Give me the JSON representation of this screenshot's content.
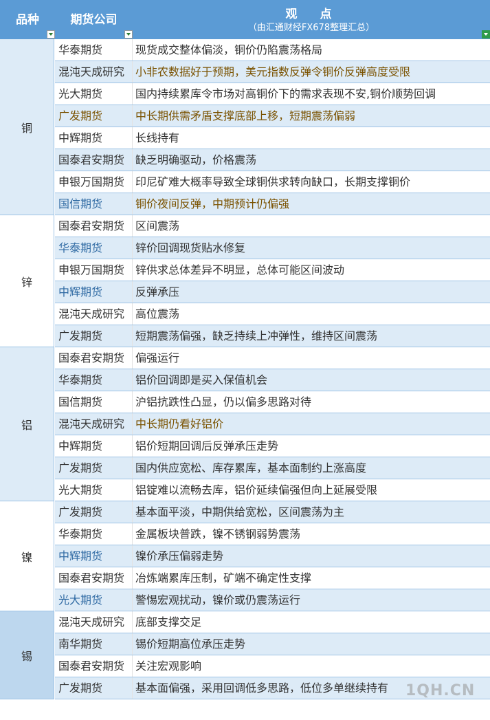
{
  "header": {
    "col_variety": "品种",
    "col_company": "期货公司",
    "col_view": "观　点",
    "col_view_sub": "（由汇通财经FX678整理汇总）"
  },
  "colors": {
    "header": "#5b9bd5",
    "row_alt": "#ddebf7",
    "cat_tin": "#bdd7ee",
    "grid": "#9cc2e5",
    "text_blue": "#2f6aa3",
    "text_brown": "#7a5200"
  },
  "groups": [
    {
      "name": "铜",
      "bg": "#ddebf7",
      "rows": [
        {
          "company": "华泰期货",
          "view": "现货成交整体偏淡，铜价仍陷震荡格局"
        },
        {
          "company": "混沌天成研究",
          "view": "小非农数据好于预期，美元指数反弹令铜价反弹高度受限",
          "view_color": "brown"
        },
        {
          "company": "光大期货",
          "view": "国内持续累库令市场对高铜价下的需求表现不安,铜价顺势回调"
        },
        {
          "company": "广发期货",
          "view": "中长期供需矛盾支撑底部上移，短期震荡偏弱",
          "company_color": "brown",
          "view_color": "brown"
        },
        {
          "company": "中辉期货",
          "view": "长线持有"
        },
        {
          "company": "国泰君安期货",
          "view": "缺乏明确驱动，价格震荡"
        },
        {
          "company": "申银万国期货",
          "view": "印尼矿难大概率导致全球铜供求转向缺口，长期支撑铜价"
        },
        {
          "company": "国信期货",
          "view": "铜价夜间反弹，中期预计仍偏强",
          "company_color": "blue",
          "view_color": "brown"
        }
      ]
    },
    {
      "name": "锌",
      "bg": "#ffffff",
      "rows": [
        {
          "company": "国泰君安期货",
          "view": "区间震荡"
        },
        {
          "company": "华泰期货",
          "view": "锌价回调现货贴水修复",
          "company_color": "blue"
        },
        {
          "company": "申银万国期货",
          "view": "锌供求总体差异不明显，总体可能区间波动"
        },
        {
          "company": "中辉期货",
          "view": "反弹承压",
          "company_color": "blue"
        },
        {
          "company": "混沌天成研究",
          "view": "高位震荡"
        },
        {
          "company": "广发期货",
          "view": "短期震荡偏强，缺乏持续上冲弹性，维持区间震荡"
        }
      ]
    },
    {
      "name": "铝",
      "bg": "#ddebf7",
      "rows": [
        {
          "company": "国泰君安期货",
          "view": "偏强运行"
        },
        {
          "company": "华泰期货",
          "view": "铝价回调即是买入保值机会"
        },
        {
          "company": "国信期货",
          "view": "沪铝抗跌性凸显，仍以偏多思路对待"
        },
        {
          "company": "混沌天成研究",
          "view": "中长期仍看好铝价",
          "view_color": "brown"
        },
        {
          "company": "中辉期货",
          "view": "铝价短期回调后反弹承压走势"
        },
        {
          "company": "广发期货",
          "view": "国内供应宽松、库存累库，基本面制约上涨高度"
        },
        {
          "company": "光大期货",
          "view": "铝锭难以流畅去库，铝价延续偏强但向上延展受限"
        }
      ]
    },
    {
      "name": "镍",
      "bg": "#ffffff",
      "rows": [
        {
          "company": "广发期货",
          "view": "基本面平淡，中期供给宽松，区间震荡为主"
        },
        {
          "company": "华泰期货",
          "view": "金属板块普跌，镍不锈钢弱势震荡"
        },
        {
          "company": "中辉期货",
          "view": "镍价承压偏弱走势",
          "company_color": "blue"
        },
        {
          "company": "国泰君安期货",
          "view": "冶炼端累库压制，矿端不确定性支撑"
        },
        {
          "company": "光大期货",
          "view": "警惕宏观扰动，镍价或仍震荡运行",
          "company_color": "blue"
        }
      ]
    },
    {
      "name": "锡",
      "bg": "#bdd7ee",
      "rows": [
        {
          "company": "混沌天成研究",
          "view": "底部支撑交足"
        },
        {
          "company": "南华期货",
          "view": "锡价短期高位承压走势"
        },
        {
          "company": "国泰君安期货",
          "view": "关注宏观影响"
        },
        {
          "company": "广发期货",
          "view": "基本面偏强，采用回调低多思路，低位多单继续持有"
        }
      ]
    }
  ],
  "watermark": "1QH.CN"
}
